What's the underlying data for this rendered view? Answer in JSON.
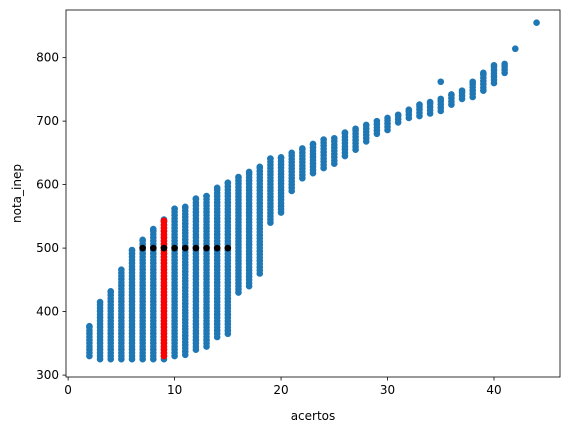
{
  "chart_data": {
    "type": "scatter",
    "title": "",
    "xlabel": "acertos",
    "ylabel": "nota_inep",
    "xlim": [
      -0.2,
      46.2
    ],
    "ylim": [
      297,
      875
    ],
    "xticks": [
      0,
      10,
      20,
      30,
      40
    ],
    "yticks": [
      300,
      400,
      500,
      600,
      700,
      800
    ],
    "grid": false,
    "legend": "none",
    "colors": {
      "main": "#1f77b4",
      "highlight_column": "#ff0000",
      "highlight_points": "#000000"
    },
    "series": [
      {
        "color": "#1f77b4",
        "columns": [
          {
            "x": 2,
            "ymin": 330,
            "ymax": 377
          },
          {
            "x": 3,
            "ymin": 325,
            "ymax": 415
          },
          {
            "x": 4,
            "ymin": 325,
            "ymax": 432
          },
          {
            "x": 5,
            "ymin": 325,
            "ymax": 466
          },
          {
            "x": 6,
            "ymin": 325,
            "ymax": 497
          },
          {
            "x": 7,
            "ymin": 325,
            "ymax": 513
          },
          {
            "x": 8,
            "ymin": 325,
            "ymax": 530
          },
          {
            "x": 9,
            "ymin": 325,
            "ymax": 545
          },
          {
            "x": 10,
            "ymin": 330,
            "ymax": 562
          },
          {
            "x": 11,
            "ymin": 332,
            "ymax": 565
          },
          {
            "x": 12,
            "ymin": 340,
            "ymax": 578
          },
          {
            "x": 13,
            "ymin": 345,
            "ymax": 582
          },
          {
            "x": 14,
            "ymin": 360,
            "ymax": 595
          },
          {
            "x": 15,
            "ymin": 365,
            "ymax": 603
          },
          {
            "x": 16,
            "ymin": 430,
            "ymax": 612
          },
          {
            "x": 17,
            "ymin": 440,
            "ymax": 620
          },
          {
            "x": 18,
            "ymin": 460,
            "ymax": 628
          },
          {
            "x": 19,
            "ymin": 540,
            "ymax": 641
          },
          {
            "x": 20,
            "ymin": 556,
            "ymax": 643
          },
          {
            "x": 21,
            "ymin": 590,
            "ymax": 650
          },
          {
            "x": 22,
            "ymin": 610,
            "ymax": 657
          },
          {
            "x": 23,
            "ymin": 618,
            "ymax": 664
          },
          {
            "x": 24,
            "ymin": 626,
            "ymax": 671
          },
          {
            "x": 25,
            "ymin": 633,
            "ymax": 673
          },
          {
            "x": 26,
            "ymin": 645,
            "ymax": 682
          },
          {
            "x": 27,
            "ymin": 655,
            "ymax": 688
          },
          {
            "x": 28,
            "ymin": 668,
            "ymax": 694
          },
          {
            "x": 29,
            "ymin": 680,
            "ymax": 700
          },
          {
            "x": 30,
            "ymin": 686,
            "ymax": 705
          },
          {
            "x": 31,
            "ymin": 698,
            "ymax": 710
          },
          {
            "x": 32,
            "ymin": 705,
            "ymax": 718
          },
          {
            "x": 33,
            "ymin": 708,
            "ymax": 726
          },
          {
            "x": 34,
            "ymin": 712,
            "ymax": 730
          },
          {
            "x": 35,
            "ymin": 716,
            "ymax": 735
          },
          {
            "x": 36,
            "ymin": 726,
            "ymax": 742
          },
          {
            "x": 37,
            "ymin": 735,
            "ymax": 748
          },
          {
            "x": 38,
            "ymin": 738,
            "ymax": 762
          },
          {
            "x": 39,
            "ymin": 748,
            "ymax": 776
          },
          {
            "x": 40,
            "ymin": 760,
            "ymax": 788
          },
          {
            "x": 41,
            "ymin": 776,
            "ymax": 790
          }
        ],
        "points": [
          {
            "x": 35,
            "y": 762
          },
          {
            "x": 42,
            "y": 814
          },
          {
            "x": 44,
            "y": 855
          }
        ]
      },
      {
        "color": "#ff0000",
        "columns": [
          {
            "x": 9,
            "ymin": 330,
            "ymax": 543
          }
        ],
        "points": []
      },
      {
        "color": "#000000",
        "columns": [],
        "points": [
          {
            "x": 7,
            "y": 500
          },
          {
            "x": 8,
            "y": 500
          },
          {
            "x": 9,
            "y": 500
          },
          {
            "x": 10,
            "y": 500
          },
          {
            "x": 11,
            "y": 500
          },
          {
            "x": 12,
            "y": 500
          },
          {
            "x": 13,
            "y": 500
          },
          {
            "x": 14,
            "y": 500
          },
          {
            "x": 15,
            "y": 500
          }
        ]
      }
    ]
  }
}
